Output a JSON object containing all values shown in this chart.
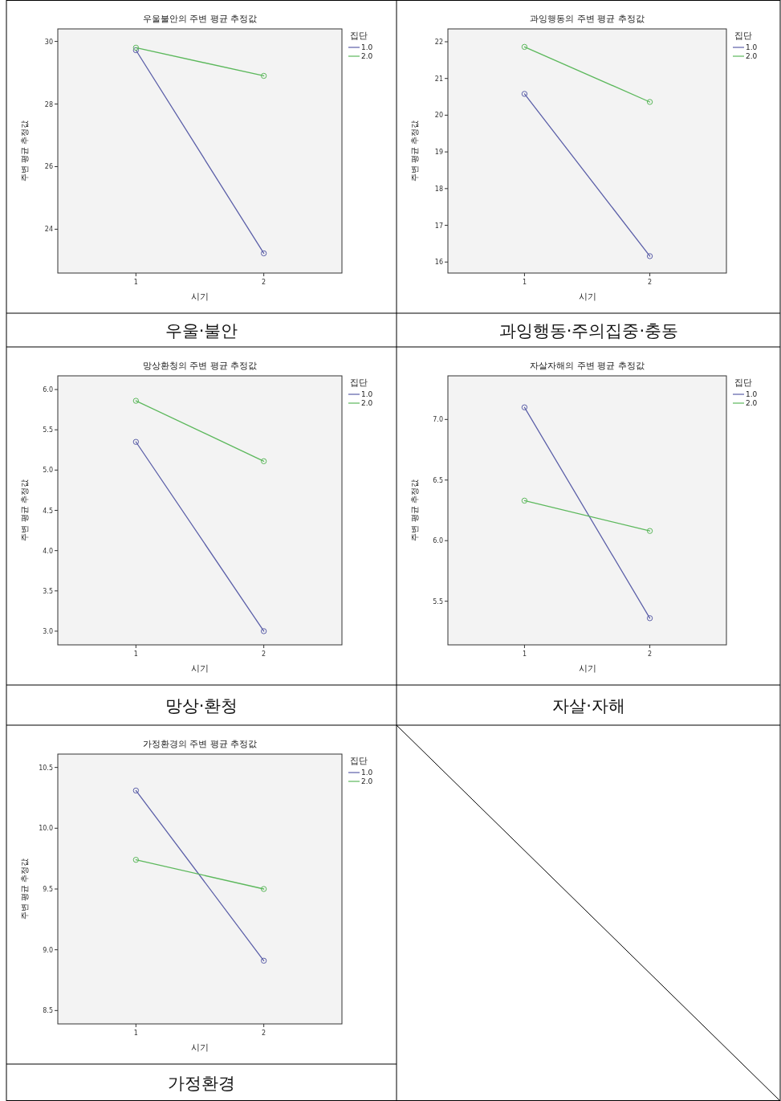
{
  "chart_data": [
    {
      "type": "line",
      "title": "우울불안의 주변 평균 추정값",
      "xlabel": "시기",
      "ylabel": "주변 평균 추정값",
      "legend_title": "집단",
      "legend": "top right",
      "marker": "circle",
      "categories": [
        "1",
        "2"
      ],
      "ylim": [
        22.6,
        30.4
      ],
      "yticks": [
        24,
        26,
        28,
        30
      ],
      "annotations": [
        "우울·불안"
      ],
      "series": [
        {
          "name": "1.0",
          "color": "#5b5fa8",
          "values": [
            29.72,
            23.23
          ]
        },
        {
          "name": "2.0",
          "color": "#5cb85c",
          "values": [
            29.8,
            28.9
          ]
        }
      ]
    },
    {
      "type": "line",
      "title": "과잉행동의 주변 평균 추정값",
      "xlabel": "시기",
      "ylabel": "주변 평균 추정값",
      "legend_title": "집단",
      "legend": "top right",
      "marker": "circle",
      "categories": [
        "1",
        "2"
      ],
      "ylim": [
        15.7,
        22.35
      ],
      "yticks": [
        16,
        17,
        18,
        19,
        20,
        21,
        22
      ],
      "annotations": [
        "과잉행동·주의집중·충동"
      ],
      "series": [
        {
          "name": "1.0",
          "color": "#5b5fa8",
          "values": [
            20.58,
            16.16
          ]
        },
        {
          "name": "2.0",
          "color": "#5cb85c",
          "values": [
            21.86,
            20.36
          ]
        }
      ]
    },
    {
      "type": "line",
      "title": "망상환청의 주변 평균 추정값",
      "xlabel": "시기",
      "ylabel": "주변 평균 추정값",
      "legend_title": "집단",
      "legend": "top right",
      "marker": "circle",
      "categories": [
        "1",
        "2"
      ],
      "ylim": [
        2.83,
        6.17
      ],
      "yticks": [
        {
          "value": 3,
          "label": "3.0"
        },
        {
          "value": 3.5,
          "label": "3.5"
        },
        {
          "value": 4,
          "label": "4.0"
        },
        {
          "value": 4.5,
          "label": "4.5"
        },
        {
          "value": 5,
          "label": "5.0"
        },
        {
          "value": 5.5,
          "label": "5.5"
        },
        {
          "value": 6,
          "label": "6.0"
        }
      ],
      "annotations": [
        "망상·환청"
      ],
      "series": [
        {
          "name": "1.0",
          "color": "#5b5fa8",
          "values": [
            5.35,
            3.0
          ]
        },
        {
          "name": "2.0",
          "color": "#5cb85c",
          "values": [
            5.86,
            5.11
          ]
        }
      ]
    },
    {
      "type": "line",
      "title": "자살자해의 주변 평균 추정값",
      "xlabel": "시기",
      "ylabel": "주변 평균 추정값",
      "legend_title": "집단",
      "legend": "top right",
      "marker": "circle",
      "categories": [
        "1",
        "2"
      ],
      "ylim": [
        5.14,
        7.36
      ],
      "yticks": [
        5.5,
        {
          "value": 6,
          "label": "6.0"
        },
        6.5,
        {
          "value": 7,
          "label": "7.0"
        }
      ],
      "annotations": [
        "자살·자해"
      ],
      "series": [
        {
          "name": "1.0",
          "color": "#5b5fa8",
          "values": [
            7.1,
            5.36
          ]
        },
        {
          "name": "2.0",
          "color": "#5cb85c",
          "values": [
            6.33,
            6.08
          ]
        }
      ]
    },
    {
      "type": "line",
      "title": "가정환경의 주변 평균 추정값",
      "xlabel": "시기",
      "ylabel": "주변 평균 추정값",
      "legend_title": "집단",
      "legend": "top right",
      "marker": "circle",
      "categories": [
        "1",
        "2"
      ],
      "ylim": [
        8.39,
        10.61
      ],
      "yticks": [
        8.5,
        {
          "value": 9,
          "label": "9.0"
        },
        9.5,
        {
          "value": 10,
          "label": "10.0"
        },
        10.5
      ],
      "annotations": [
        "가정환경"
      ],
      "series": [
        {
          "name": "1.0",
          "color": "#5b5fa8",
          "values": [
            10.31,
            8.91
          ]
        },
        {
          "name": "2.0",
          "color": "#5cb85c",
          "values": [
            9.74,
            9.5
          ]
        }
      ]
    }
  ]
}
